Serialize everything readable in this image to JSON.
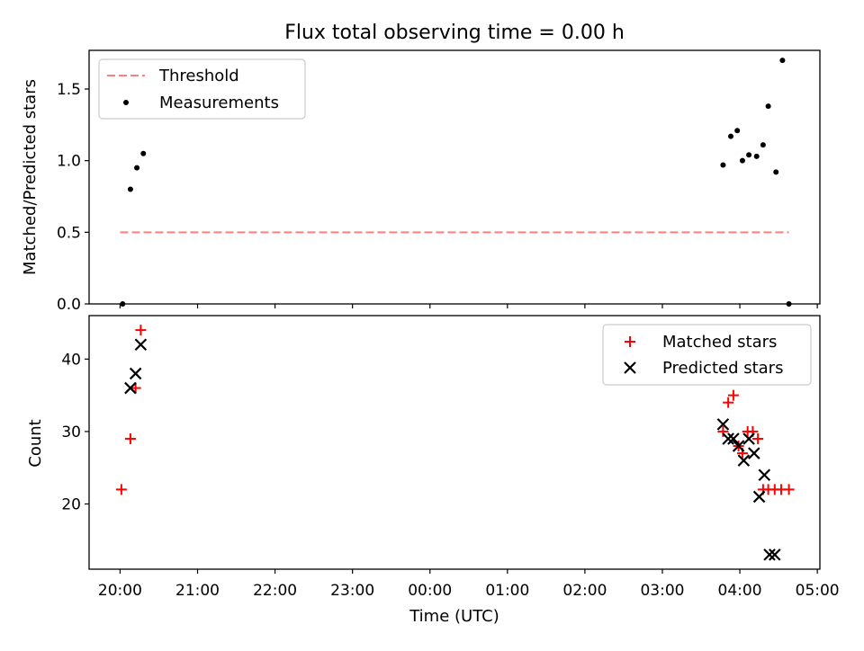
{
  "chart_data": [
    {
      "type": "scatter",
      "title": "Flux total observing time = 0.00 h",
      "ylabel": "Matched/Predicted stars",
      "xlabel": "",
      "xlim": [
        "19:36",
        "05:02"
      ],
      "ylim": [
        0,
        1.77
      ],
      "yticks": [
        "0.0",
        "0.5",
        "1.0",
        "1.5"
      ],
      "legend": {
        "position": "upper-left",
        "entries": [
          "Threshold",
          "Measurements"
        ]
      },
      "series": [
        {
          "name": "Threshold",
          "kind": "dashed-line",
          "color": "#ff7f7f",
          "x": [
            "20:00",
            "04:38"
          ],
          "y": [
            0.5,
            0.5
          ]
        },
        {
          "name": "Measurements",
          "kind": "dots",
          "color": "#000000",
          "x": [
            "20:02",
            "20:08",
            "20:13",
            "20:18",
            "03:47",
            "03:53",
            "03:58",
            "04:02",
            "04:07",
            "04:13",
            "04:18",
            "04:22",
            "04:28",
            "04:33",
            "04:38"
          ],
          "y": [
            0.0,
            0.8,
            0.95,
            1.05,
            0.97,
            1.17,
            1.21,
            1.0,
            1.04,
            1.03,
            1.11,
            1.38,
            0.92,
            1.7,
            0.0
          ]
        }
      ]
    },
    {
      "type": "scatter",
      "title": "",
      "xlabel": "Time (UTC)",
      "ylabel": "Count",
      "xlim": [
        "19:36",
        "05:02"
      ],
      "ylim": [
        11,
        46
      ],
      "yticks": [
        "20",
        "30",
        "40"
      ],
      "xticks": [
        "20:00",
        "21:00",
        "22:00",
        "23:00",
        "00:00",
        "01:00",
        "02:00",
        "03:00",
        "04:00",
        "05:00"
      ],
      "legend": {
        "position": "upper-right",
        "entries": [
          "Matched stars",
          "Predicted stars"
        ]
      },
      "series": [
        {
          "name": "Matched stars",
          "marker": "plus",
          "color": "#ff0000",
          "x": [
            "20:01",
            "20:08",
            "20:12",
            "20:16",
            "03:47",
            "03:51",
            "03:55",
            "03:59",
            "04:02",
            "04:06",
            "04:10",
            "04:14",
            "04:18",
            "04:22",
            "04:27",
            "04:32",
            "04:38"
          ],
          "y": [
            22,
            29,
            36,
            44,
            30,
            34,
            35,
            28,
            27,
            30,
            30,
            29,
            22,
            22,
            22,
            22,
            22
          ]
        },
        {
          "name": "Predicted stars",
          "marker": "x",
          "color": "#000000",
          "x": [
            "20:08",
            "20:12",
            "20:16",
            "03:47",
            "03:51",
            "03:55",
            "03:59",
            "04:03",
            "04:07",
            "04:11",
            "04:15",
            "04:19",
            "04:23",
            "04:27"
          ],
          "y": [
            36,
            38,
            42,
            31,
            29,
            29,
            28,
            26,
            29,
            27,
            21,
            24,
            13,
            13
          ]
        }
      ]
    }
  ]
}
